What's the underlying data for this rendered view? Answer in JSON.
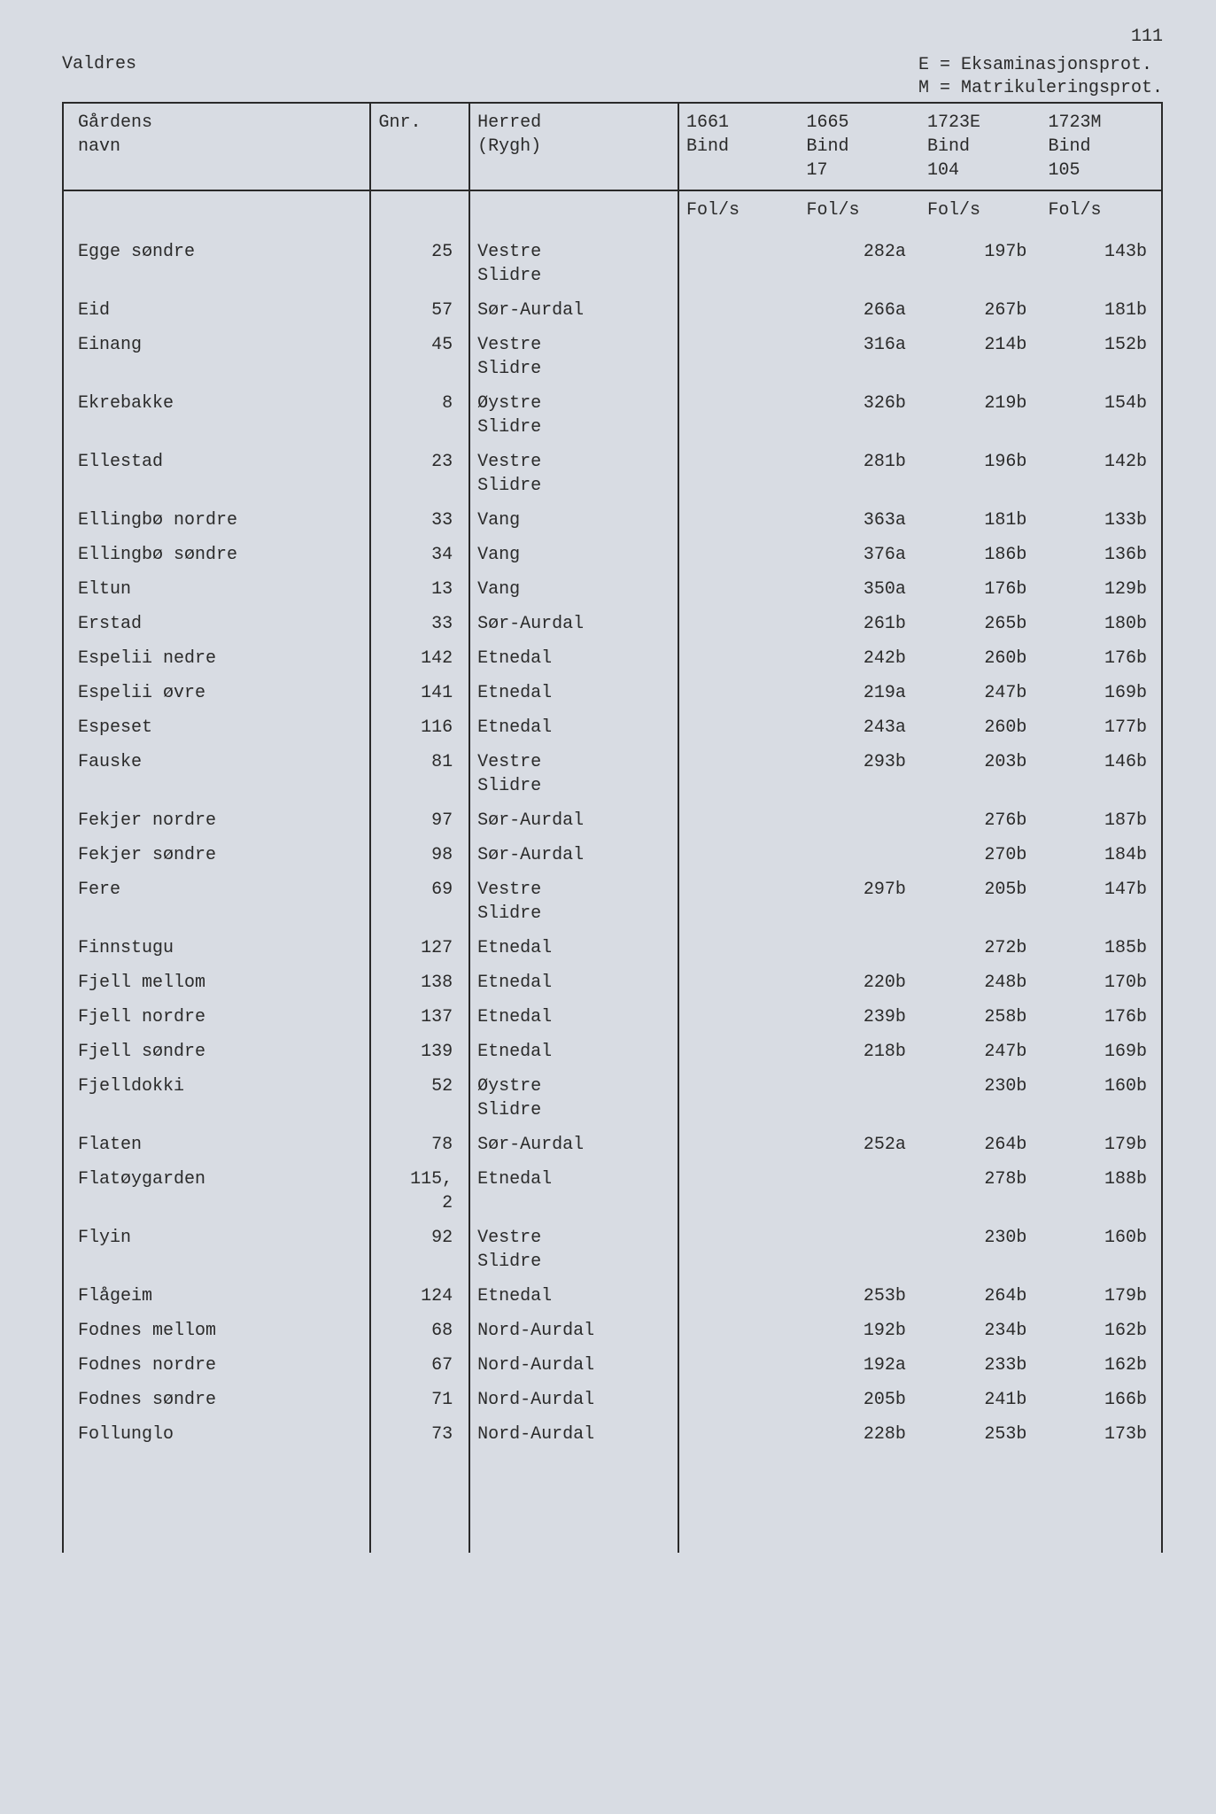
{
  "page_number": "111",
  "region": "Valdres",
  "legend": [
    "E = Eksaminasjonsprot.",
    "M = Matrikuleringsprot."
  ],
  "columns": {
    "name": {
      "line1": "Gårdens",
      "line2": "navn"
    },
    "gnr": {
      "line1": "Gnr."
    },
    "herred": {
      "line1": "Herred",
      "line2": "(Rygh)"
    },
    "b1661": {
      "line1": "1661",
      "line2": "Bind",
      "line3": ""
    },
    "b1665": {
      "line1": "1665",
      "line2": "Bind",
      "line3": "17"
    },
    "b1723E": {
      "line1": "1723E",
      "line2": "Bind",
      "line3": "104"
    },
    "b1723M": {
      "line1": "1723M",
      "line2": "Bind",
      "line3": "105"
    }
  },
  "subheader": "Fol/s",
  "rows": [
    {
      "name": "Egge søndre",
      "gnr": "25",
      "herred": "Vestre Slidre",
      "b1661": "",
      "b1665": "282a",
      "b1723E": "197b",
      "b1723M": "143b"
    },
    {
      "name": "Eid",
      "gnr": "57",
      "herred": "Sør-Aurdal",
      "b1661": "",
      "b1665": "266a",
      "b1723E": "267b",
      "b1723M": "181b"
    },
    {
      "name": "Einang",
      "gnr": "45",
      "herred": "Vestre Slidre",
      "b1661": "",
      "b1665": "316a",
      "b1723E": "214b",
      "b1723M": "152b"
    },
    {
      "name": "Ekrebakke",
      "gnr": "8",
      "herred": "Øystre Slidre",
      "b1661": "",
      "b1665": "326b",
      "b1723E": "219b",
      "b1723M": "154b"
    },
    {
      "name": "Ellestad",
      "gnr": "23",
      "herred": "Vestre Slidre",
      "b1661": "",
      "b1665": "281b",
      "b1723E": "196b",
      "b1723M": "142b"
    },
    {
      "name": "Ellingbø nordre",
      "gnr": "33",
      "herred": "Vang",
      "b1661": "",
      "b1665": "363a",
      "b1723E": "181b",
      "b1723M": "133b"
    },
    {
      "name": "Ellingbø søndre",
      "gnr": "34",
      "herred": "Vang",
      "b1661": "",
      "b1665": "376a",
      "b1723E": "186b",
      "b1723M": "136b"
    },
    {
      "name": "Eltun",
      "gnr": "13",
      "herred": "Vang",
      "b1661": "",
      "b1665": "350a",
      "b1723E": "176b",
      "b1723M": "129b"
    },
    {
      "name": "Erstad",
      "gnr": "33",
      "herred": "Sør-Aurdal",
      "b1661": "",
      "b1665": "261b",
      "b1723E": "265b",
      "b1723M": "180b"
    },
    {
      "name": "Espelii nedre",
      "gnr": "142",
      "herred": "Etnedal",
      "b1661": "",
      "b1665": "242b",
      "b1723E": "260b",
      "b1723M": "176b"
    },
    {
      "name": "Espelii øvre",
      "gnr": "141",
      "herred": "Etnedal",
      "b1661": "",
      "b1665": "219a",
      "b1723E": "247b",
      "b1723M": "169b"
    },
    {
      "name": "Espeset",
      "gnr": "116",
      "herred": "Etnedal",
      "b1661": "",
      "b1665": "243a",
      "b1723E": "260b",
      "b1723M": "177b"
    },
    {
      "name": "Fauske",
      "gnr": "81",
      "herred": "Vestre Slidre",
      "b1661": "",
      "b1665": "293b",
      "b1723E": "203b",
      "b1723M": "146b"
    },
    {
      "name": "Fekjer nordre",
      "gnr": "97",
      "herred": "Sør-Aurdal",
      "b1661": "",
      "b1665": "",
      "b1723E": "276b",
      "b1723M": "187b"
    },
    {
      "name": "Fekjer søndre",
      "gnr": "98",
      "herred": "Sør-Aurdal",
      "b1661": "",
      "b1665": "",
      "b1723E": "270b",
      "b1723M": "184b"
    },
    {
      "name": "Fere",
      "gnr": "69",
      "herred": "Vestre Slidre",
      "b1661": "",
      "b1665": "297b",
      "b1723E": "205b",
      "b1723M": "147b"
    },
    {
      "name": "Finnstugu",
      "gnr": "127",
      "herred": "Etnedal",
      "b1661": "",
      "b1665": "",
      "b1723E": "272b",
      "b1723M": "185b"
    },
    {
      "name": "Fjell mellom",
      "gnr": "138",
      "herred": "Etnedal",
      "b1661": "",
      "b1665": "220b",
      "b1723E": "248b",
      "b1723M": "170b"
    },
    {
      "name": "Fjell nordre",
      "gnr": "137",
      "herred": "Etnedal",
      "b1661": "",
      "b1665": "239b",
      "b1723E": "258b",
      "b1723M": "176b"
    },
    {
      "name": "Fjell søndre",
      "gnr": "139",
      "herred": "Etnedal",
      "b1661": "",
      "b1665": "218b",
      "b1723E": "247b",
      "b1723M": "169b"
    },
    {
      "name": "Fjelldokki",
      "gnr": "52",
      "herred": "Øystre Slidre",
      "b1661": "",
      "b1665": "",
      "b1723E": "230b",
      "b1723M": "160b"
    },
    {
      "name": "Flaten",
      "gnr": "78",
      "herred": "Sør-Aurdal",
      "b1661": "",
      "b1665": "252a",
      "b1723E": "264b",
      "b1723M": "179b"
    },
    {
      "name": "Flatøygarden",
      "gnr": "115,",
      "gnr_extra": "2",
      "herred": "Etnedal",
      "b1661": "",
      "b1665": "",
      "b1723E": "278b",
      "b1723M": "188b"
    },
    {
      "name": "Flyin",
      "gnr": "92",
      "herred": "Vestre Slidre",
      "b1661": "",
      "b1665": "",
      "b1723E": "230b",
      "b1723M": "160b"
    },
    {
      "name": "Flågeim",
      "gnr": "124",
      "herred": "Etnedal",
      "b1661": "",
      "b1665": "253b",
      "b1723E": "264b",
      "b1723M": "179b"
    },
    {
      "name": "Fodnes mellom",
      "gnr": "68",
      "herred": "Nord-Aurdal",
      "b1661": "",
      "b1665": "192b",
      "b1723E": "234b",
      "b1723M": "162b"
    },
    {
      "name": "Fodnes nordre",
      "gnr": "67",
      "herred": "Nord-Aurdal",
      "b1661": "",
      "b1665": "192a",
      "b1723E": "233b",
      "b1723M": "162b"
    },
    {
      "name": "Fodnes søndre",
      "gnr": "71",
      "herred": "Nord-Aurdal",
      "b1661": "",
      "b1665": "205b",
      "b1723E": "241b",
      "b1723M": "166b"
    },
    {
      "name": "Follunglo",
      "gnr": "73",
      "herred": "Nord-Aurdal",
      "b1661": "",
      "b1665": "228b",
      "b1723E": "253b",
      "b1723M": "173b"
    }
  ],
  "styling": {
    "background_color": "#d8dce3",
    "text_color": "#2a2a2a",
    "rule_color": "#2a2a2a",
    "font_family": "Courier New",
    "font_size_pt": 15
  }
}
